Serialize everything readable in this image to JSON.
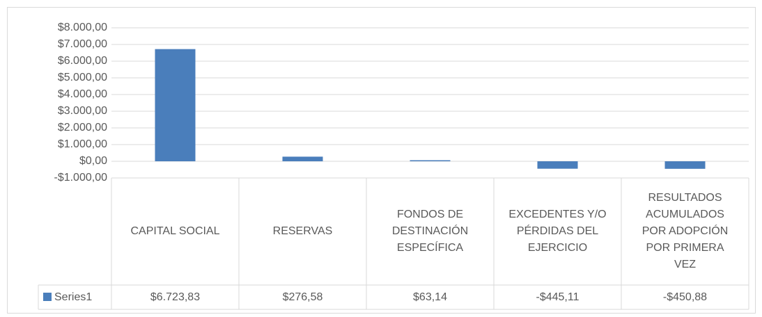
{
  "chart_data": {
    "type": "bar",
    "categories": [
      "CAPITAL SOCIAL",
      "RESERVAS",
      "FONDOS  DE DESTINACIÓN ESPECÍFICA",
      "EXCEDENTES Y/O PÉRDIDAS DEL EJERCICIO",
      "RESULTADOS ACUMULADOS POR ADOPCIÓN POR PRIMERA VEZ"
    ],
    "series": [
      {
        "name": "Series1",
        "color": "#4a7ebb",
        "values": [
          6723.83,
          276.58,
          63.14,
          -445.11,
          -450.88
        ],
        "value_labels": [
          "$6.723,83",
          "$276,58",
          "$63,14",
          "-$445,11",
          "-$450,88"
        ]
      }
    ],
    "ylim": [
      -1000,
      8000
    ],
    "yticks": [
      {
        "value": -1000,
        "label": "-$1.000,00"
      },
      {
        "value": 0,
        "label": "$0,00"
      },
      {
        "value": 1000,
        "label": "$1.000,00"
      },
      {
        "value": 2000,
        "label": "$2.000,00"
      },
      {
        "value": 3000,
        "label": "$3.000,00"
      },
      {
        "value": 4000,
        "label": "$4.000,00"
      },
      {
        "value": 5000,
        "label": "$5.000,00"
      },
      {
        "value": 6000,
        "label": "$6.000,00"
      },
      {
        "value": 7000,
        "label": "$7.000,00"
      },
      {
        "value": 8000,
        "label": "$8.000,00"
      }
    ],
    "grid": true,
    "data_table": true
  }
}
